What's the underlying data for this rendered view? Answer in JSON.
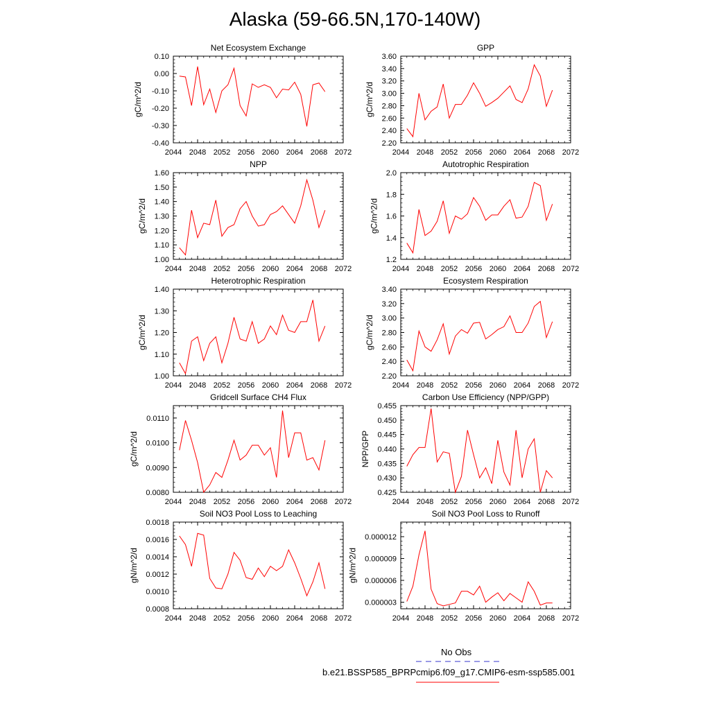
{
  "figure_title": "Alaska (59-66.5N,170-140W)",
  "legend": {
    "obs_label": "No Obs",
    "obs_color": "#3333cc",
    "model_label": "b.e21.BSSP585_BPRPcmip6.f09_g17.CMIP6-esm-ssp585.001",
    "model_color": "#ff0000"
  },
  "chart_data": [
    {
      "type": "line",
      "title": "Net Ecosystem Exchange",
      "ylabel": "gC/m^2/d",
      "xlim": [
        2044,
        2072
      ],
      "ylim": [
        -0.4,
        0.1
      ],
      "xticks": [
        "2044",
        "2048",
        "2052",
        "2056",
        "2060",
        "2064",
        "2068",
        "2072"
      ],
      "yticks": [
        "-0.40",
        "-0.30",
        "-0.20",
        "-0.10",
        "0.00",
        "0.10"
      ],
      "x": [
        2045,
        2046,
        2047,
        2048,
        2049,
        2050,
        2051,
        2052,
        2053,
        2054,
        2055,
        2056,
        2057,
        2058,
        2059,
        2060,
        2061,
        2062,
        2063,
        2064,
        2065,
        2066,
        2067,
        2068,
        2069
      ],
      "series": [
        {
          "values": [
            -0.015,
            -0.02,
            -0.185,
            0.04,
            -0.18,
            -0.09,
            -0.225,
            -0.1,
            -0.065,
            0.03,
            -0.185,
            -0.245,
            -0.06,
            -0.08,
            -0.065,
            -0.08,
            -0.14,
            -0.09,
            -0.095,
            -0.05,
            -0.12,
            -0.305,
            -0.065,
            -0.055,
            -0.105
          ],
          "color": "#ff0000"
        }
      ]
    },
    {
      "type": "line",
      "title": "GPP",
      "ylabel": "gC/m^2/d",
      "xlim": [
        2044,
        2072
      ],
      "ylim": [
        2.2,
        3.6
      ],
      "xticks": [
        "2044",
        "2048",
        "2052",
        "2056",
        "2060",
        "2064",
        "2068",
        "2072"
      ],
      "yticks": [
        "2.20",
        "2.40",
        "2.60",
        "2.80",
        "3.00",
        "3.20",
        "3.40",
        "3.60"
      ],
      "x": [
        2045,
        2046,
        2047,
        2048,
        2049,
        2050,
        2051,
        2052,
        2053,
        2054,
        2055,
        2056,
        2057,
        2058,
        2059,
        2060,
        2061,
        2062,
        2063,
        2064,
        2065,
        2066,
        2067,
        2068,
        2069
      ],
      "series": [
        {
          "values": [
            2.43,
            2.3,
            3.0,
            2.57,
            2.71,
            2.78,
            3.15,
            2.6,
            2.82,
            2.82,
            2.97,
            3.17,
            3.0,
            2.79,
            2.85,
            2.92,
            3.02,
            3.12,
            2.9,
            2.85,
            3.07,
            3.46,
            3.28,
            2.79,
            3.05
          ],
          "color": "#ff0000"
        }
      ]
    },
    {
      "type": "line",
      "title": "NPP",
      "ylabel": "gC/m^2/d",
      "xlim": [
        2044,
        2072
      ],
      "ylim": [
        1.0,
        1.6
      ],
      "xticks": [
        "2044",
        "2048",
        "2052",
        "2056",
        "2060",
        "2064",
        "2068",
        "2072"
      ],
      "yticks": [
        "1.00",
        "1.10",
        "1.20",
        "1.30",
        "1.40",
        "1.50",
        "1.60"
      ],
      "x": [
        2045,
        2046,
        2047,
        2048,
        2049,
        2050,
        2051,
        2052,
        2053,
        2054,
        2055,
        2056,
        2057,
        2058,
        2059,
        2060,
        2061,
        2062,
        2063,
        2064,
        2065,
        2066,
        2067,
        2068,
        2069
      ],
      "series": [
        {
          "values": [
            1.08,
            1.03,
            1.34,
            1.15,
            1.25,
            1.24,
            1.41,
            1.16,
            1.22,
            1.24,
            1.35,
            1.4,
            1.3,
            1.23,
            1.24,
            1.31,
            1.33,
            1.37,
            1.31,
            1.25,
            1.37,
            1.55,
            1.41,
            1.22,
            1.34
          ],
          "color": "#ff0000"
        }
      ]
    },
    {
      "type": "line",
      "title": "Autotrophic Respiration",
      "ylabel": "gC/m^2/d",
      "xlim": [
        2044,
        2072
      ],
      "ylim": [
        1.2,
        2.0
      ],
      "xticks": [
        "2044",
        "2048",
        "2052",
        "2056",
        "2060",
        "2064",
        "2068",
        "2072"
      ],
      "yticks": [
        "1.2",
        "1.4",
        "1.6",
        "1.8",
        "2.0"
      ],
      "x": [
        2045,
        2046,
        2047,
        2048,
        2049,
        2050,
        2051,
        2052,
        2053,
        2054,
        2055,
        2056,
        2057,
        2058,
        2059,
        2060,
        2061,
        2062,
        2063,
        2064,
        2065,
        2066,
        2067,
        2068,
        2069
      ],
      "series": [
        {
          "values": [
            1.35,
            1.26,
            1.66,
            1.42,
            1.46,
            1.55,
            1.74,
            1.44,
            1.6,
            1.57,
            1.62,
            1.77,
            1.69,
            1.56,
            1.61,
            1.61,
            1.69,
            1.75,
            1.58,
            1.59,
            1.69,
            1.91,
            1.88,
            1.56,
            1.71
          ],
          "color": "#ff0000"
        }
      ]
    },
    {
      "type": "line",
      "title": "Heterotrophic Respiration",
      "ylabel": "gC/m^2/d",
      "xlim": [
        2044,
        2072
      ],
      "ylim": [
        1.0,
        1.4
      ],
      "xticks": [
        "2044",
        "2048",
        "2052",
        "2056",
        "2060",
        "2064",
        "2068",
        "2072"
      ],
      "yticks": [
        "1.00",
        "1.10",
        "1.20",
        "1.30",
        "1.40"
      ],
      "x": [
        2045,
        2046,
        2047,
        2048,
        2049,
        2050,
        2051,
        2052,
        2053,
        2054,
        2055,
        2056,
        2057,
        2058,
        2059,
        2060,
        2061,
        2062,
        2063,
        2064,
        2065,
        2066,
        2067,
        2068,
        2069
      ],
      "series": [
        {
          "values": [
            1.06,
            1.01,
            1.16,
            1.18,
            1.07,
            1.15,
            1.18,
            1.06,
            1.15,
            1.27,
            1.17,
            1.16,
            1.25,
            1.15,
            1.17,
            1.23,
            1.19,
            1.28,
            1.21,
            1.2,
            1.25,
            1.25,
            1.35,
            1.16,
            1.23
          ],
          "color": "#ff0000"
        }
      ]
    },
    {
      "type": "line",
      "title": "Ecosystem Respiration",
      "ylabel": "gC/m^2/d",
      "xlim": [
        2044,
        2072
      ],
      "ylim": [
        2.2,
        3.4
      ],
      "xticks": [
        "2044",
        "2048",
        "2052",
        "2056",
        "2060",
        "2064",
        "2068",
        "2072"
      ],
      "yticks": [
        "2.20",
        "2.40",
        "2.60",
        "2.80",
        "3.00",
        "3.20",
        "3.40"
      ],
      "x": [
        2045,
        2046,
        2047,
        2048,
        2049,
        2050,
        2051,
        2052,
        2053,
        2054,
        2055,
        2056,
        2057,
        2058,
        2059,
        2060,
        2061,
        2062,
        2063,
        2064,
        2065,
        2066,
        2067,
        2068,
        2069
      ],
      "series": [
        {
          "values": [
            2.42,
            2.27,
            2.82,
            2.6,
            2.54,
            2.7,
            2.92,
            2.5,
            2.75,
            2.84,
            2.79,
            2.93,
            2.94,
            2.71,
            2.77,
            2.84,
            2.88,
            3.03,
            2.8,
            2.8,
            2.93,
            3.16,
            3.23,
            2.73,
            2.95
          ],
          "color": "#ff0000"
        }
      ]
    },
    {
      "type": "line",
      "title": "Gridcell Surface CH4 Flux",
      "ylabel": "gC/m^2/d",
      "xlim": [
        2044,
        2072
      ],
      "ylim": [
        0.008,
        0.0115
      ],
      "xticks": [
        "2044",
        "2048",
        "2052",
        "2056",
        "2060",
        "2064",
        "2068",
        "2072"
      ],
      "yticks": [
        "0.0080",
        "0.0090",
        "0.0100",
        "0.0110"
      ],
      "ytick_values": [
        0.008,
        0.009,
        0.01,
        0.011
      ],
      "x": [
        2045,
        2046,
        2047,
        2048,
        2049,
        2050,
        2051,
        2052,
        2053,
        2054,
        2055,
        2056,
        2057,
        2058,
        2059,
        2060,
        2061,
        2062,
        2063,
        2064,
        2065,
        2066,
        2067,
        2068,
        2069
      ],
      "series": [
        {
          "values": [
            0.0097,
            0.0109,
            0.0101,
            0.0092,
            0.008,
            0.0083,
            0.0088,
            0.0086,
            0.0093,
            0.0101,
            0.0093,
            0.0095,
            0.0099,
            0.0099,
            0.0095,
            0.0098,
            0.0086,
            0.0113,
            0.0094,
            0.0104,
            0.0104,
            0.0093,
            0.0094,
            0.0089,
            0.0101
          ],
          "color": "#ff0000"
        }
      ]
    },
    {
      "type": "line",
      "title": "Carbon Use Efficiency (NPP/GPP)",
      "ylabel": "NPP/GPP",
      "xlim": [
        2044,
        2072
      ],
      "ylim": [
        0.425,
        0.455
      ],
      "xticks": [
        "2044",
        "2048",
        "2052",
        "2056",
        "2060",
        "2064",
        "2068",
        "2072"
      ],
      "yticks": [
        "0.425",
        "0.430",
        "0.435",
        "0.440",
        "0.445",
        "0.450",
        "0.455"
      ],
      "x": [
        2045,
        2046,
        2047,
        2048,
        2049,
        2050,
        2051,
        2052,
        2053,
        2054,
        2055,
        2056,
        2057,
        2058,
        2059,
        2060,
        2061,
        2062,
        2063,
        2064,
        2065,
        2066,
        2067,
        2068,
        2069
      ],
      "series": [
        {
          "values": [
            0.434,
            0.438,
            0.4405,
            0.4405,
            0.454,
            0.4355,
            0.439,
            0.4385,
            0.425,
            0.4305,
            0.4465,
            0.438,
            0.43,
            0.4335,
            0.428,
            0.443,
            0.432,
            0.4275,
            0.4465,
            0.43,
            0.44,
            0.4435,
            0.425,
            0.4325,
            0.43
          ],
          "color": "#ff0000"
        }
      ]
    },
    {
      "type": "line",
      "title": "Soil NO3 Pool Loss to Leaching",
      "ylabel": "gN/m^2/d",
      "xlim": [
        2044,
        2072
      ],
      "ylim": [
        0.0008,
        0.0018
      ],
      "xticks": [
        "2044",
        "2048",
        "2052",
        "2056",
        "2060",
        "2064",
        "2068",
        "2072"
      ],
      "yticks": [
        "0.0008",
        "0.0010",
        "0.0012",
        "0.0014",
        "0.0016",
        "0.0018"
      ],
      "x": [
        2045,
        2046,
        2047,
        2048,
        2049,
        2050,
        2051,
        2052,
        2053,
        2054,
        2055,
        2056,
        2057,
        2058,
        2059,
        2060,
        2061,
        2062,
        2063,
        2064,
        2065,
        2066,
        2067,
        2068,
        2069
      ],
      "series": [
        {
          "values": [
            0.00164,
            0.00154,
            0.00129,
            0.00167,
            0.00165,
            0.00115,
            0.00104,
            0.00103,
            0.0012,
            0.00145,
            0.00136,
            0.00116,
            0.00114,
            0.00127,
            0.00117,
            0.00129,
            0.00124,
            0.00129,
            0.00148,
            0.00133,
            0.00115,
            0.00095,
            0.00111,
            0.00133,
            0.00103
          ],
          "color": "#ff0000"
        }
      ]
    },
    {
      "type": "line",
      "title": "Soil NO3 Pool Loss to Runoff",
      "ylabel": "gN/m^2/d",
      "xlim": [
        2044,
        2072
      ],
      "ylim": [
        2.1e-06,
        1.4e-05
      ],
      "xticks": [
        "2044",
        "2048",
        "2052",
        "2056",
        "2060",
        "2064",
        "2068",
        "2072"
      ],
      "yticks": [
        "0.000003",
        "0.000006",
        "0.000009",
        "0.000012"
      ],
      "ytick_values": [
        3e-06,
        6e-06,
        9e-06,
        1.2e-05
      ],
      "x": [
        2045,
        2046,
        2047,
        2048,
        2049,
        2050,
        2051,
        2052,
        2053,
        2054,
        2055,
        2056,
        2057,
        2058,
        2059,
        2060,
        2061,
        2062,
        2063,
        2064,
        2065,
        2066,
        2067,
        2068,
        2069
      ],
      "series": [
        {
          "values": [
            3.1e-06,
            5.2e-06,
            9.5e-06,
            1.28e-05,
            4.8e-06,
            2.8e-06,
            2.5e-06,
            2.7e-06,
            2.9e-06,
            4.5e-06,
            4.5e-06,
            4e-06,
            5.2e-06,
            3e-06,
            3.7e-06,
            4.3e-06,
            3.2e-06,
            4.2e-06,
            3.6e-06,
            3e-06,
            5.8e-06,
            4.5e-06,
            2.6e-06,
            2.9e-06,
            2.9e-06
          ],
          "color": "#ff0000"
        }
      ]
    }
  ]
}
